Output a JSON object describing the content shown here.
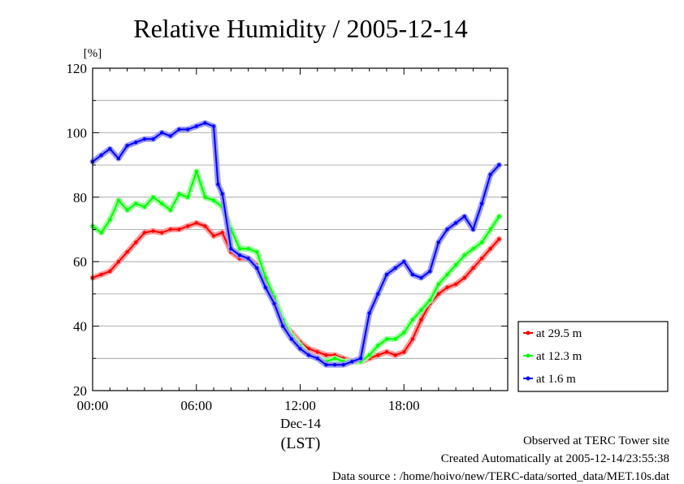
{
  "chart_data": {
    "type": "line",
    "title": "Relative Humidity / 2005-12-14",
    "ylabel": "[%]",
    "ylim": [
      20,
      120
    ],
    "yticks": [
      20,
      40,
      60,
      80,
      100,
      120
    ],
    "xlim": [
      0,
      24
    ],
    "xticks": [
      {
        "value": 0,
        "label": "00:00"
      },
      {
        "value": 6,
        "label": "06:00"
      },
      {
        "value": 12,
        "label": "12:00"
      },
      {
        "value": 18,
        "label": "18:00"
      }
    ],
    "xlabel_date": "Dec-14",
    "xlabel_units": "(LST)",
    "grid": true,
    "legend_position": "right",
    "series": [
      {
        "name": "at 29.5 m",
        "color": "#ff0000",
        "x": [
          0,
          0.5,
          1,
          1.5,
          2,
          2.5,
          3,
          3.5,
          4,
          4.5,
          5,
          5.5,
          6,
          6.5,
          7,
          7.5,
          8,
          8.5,
          9,
          9.5,
          10,
          10.5,
          11,
          11.5,
          12,
          12.5,
          13,
          13.5,
          14,
          14.5,
          15,
          15.5,
          16,
          16.5,
          17,
          17.5,
          18,
          18.5,
          19,
          19.5,
          20,
          20.5,
          21,
          21.5,
          22,
          22.5,
          23,
          23.5
        ],
        "y": [
          55,
          56,
          57,
          60,
          63,
          66,
          69,
          69.5,
          69,
          70,
          70,
          71,
          72,
          71,
          68,
          69,
          63,
          61,
          61,
          59,
          53,
          48,
          41,
          38,
          35,
          33,
          32,
          31,
          31,
          30,
          29,
          29,
          30,
          31,
          32,
          31,
          32,
          36,
          42,
          47,
          50,
          52,
          53,
          55,
          58,
          61,
          64,
          67
        ]
      },
      {
        "name": "at 12.3 m",
        "color": "#00ff00",
        "x": [
          0,
          0.5,
          1,
          1.5,
          2,
          2.5,
          3,
          3.5,
          4,
          4.5,
          5,
          5.5,
          6,
          6.5,
          7,
          7.5,
          8,
          8.5,
          9,
          9.5,
          10,
          10.5,
          11,
          11.5,
          12,
          12.5,
          13,
          13.5,
          14,
          14.5,
          15,
          15.5,
          16,
          16.5,
          17,
          17.5,
          18,
          18.5,
          19,
          19.5,
          20,
          20.5,
          21,
          21.5,
          22,
          22.5,
          23,
          23.5
        ],
        "y": [
          71,
          69,
          73,
          79,
          76,
          78,
          77,
          80,
          78,
          76,
          81,
          80,
          88,
          80,
          79,
          77,
          70,
          64,
          64,
          63,
          55,
          49,
          42,
          37,
          34,
          31,
          30,
          29,
          30,
          29,
          29,
          29,
          31,
          34,
          36,
          36,
          38,
          42,
          45,
          48,
          53,
          56,
          59,
          62,
          64,
          66,
          70,
          74
        ]
      },
      {
        "name": "at 1.6 m",
        "color": "#0000ff",
        "x": [
          0,
          0.5,
          1,
          1.5,
          2,
          2.5,
          3,
          3.5,
          4,
          4.5,
          5,
          5.5,
          6,
          6.5,
          7,
          7.25,
          7.5,
          8,
          8.5,
          9,
          9.5,
          10,
          10.5,
          11,
          11.5,
          12,
          12.5,
          13,
          13.5,
          14,
          14.5,
          15,
          15.5,
          16,
          16.5,
          17,
          17.5,
          18,
          18.5,
          19,
          19.5,
          20,
          20.5,
          21,
          21.5,
          22,
          22.5,
          23,
          23.5
        ],
        "y": [
          91,
          93,
          95,
          92,
          96,
          97,
          98,
          98,
          100,
          99,
          101,
          101,
          102,
          103,
          102,
          84,
          81,
          64,
          62,
          61,
          58,
          52,
          47,
          40,
          36,
          33,
          31,
          30,
          28,
          28,
          28,
          29,
          30,
          44,
          50,
          56,
          58,
          60,
          56,
          55,
          57,
          66,
          70,
          72,
          74,
          70,
          78,
          87,
          90
        ]
      }
    ]
  },
  "footer": {
    "observed": "Observed at TERC Tower site",
    "created": "Created Automatically at 2005-12-14/23:55:38",
    "source": "Data source : /home/hoivo/new/TERC-data/sorted_data/MET.10s.dat"
  }
}
